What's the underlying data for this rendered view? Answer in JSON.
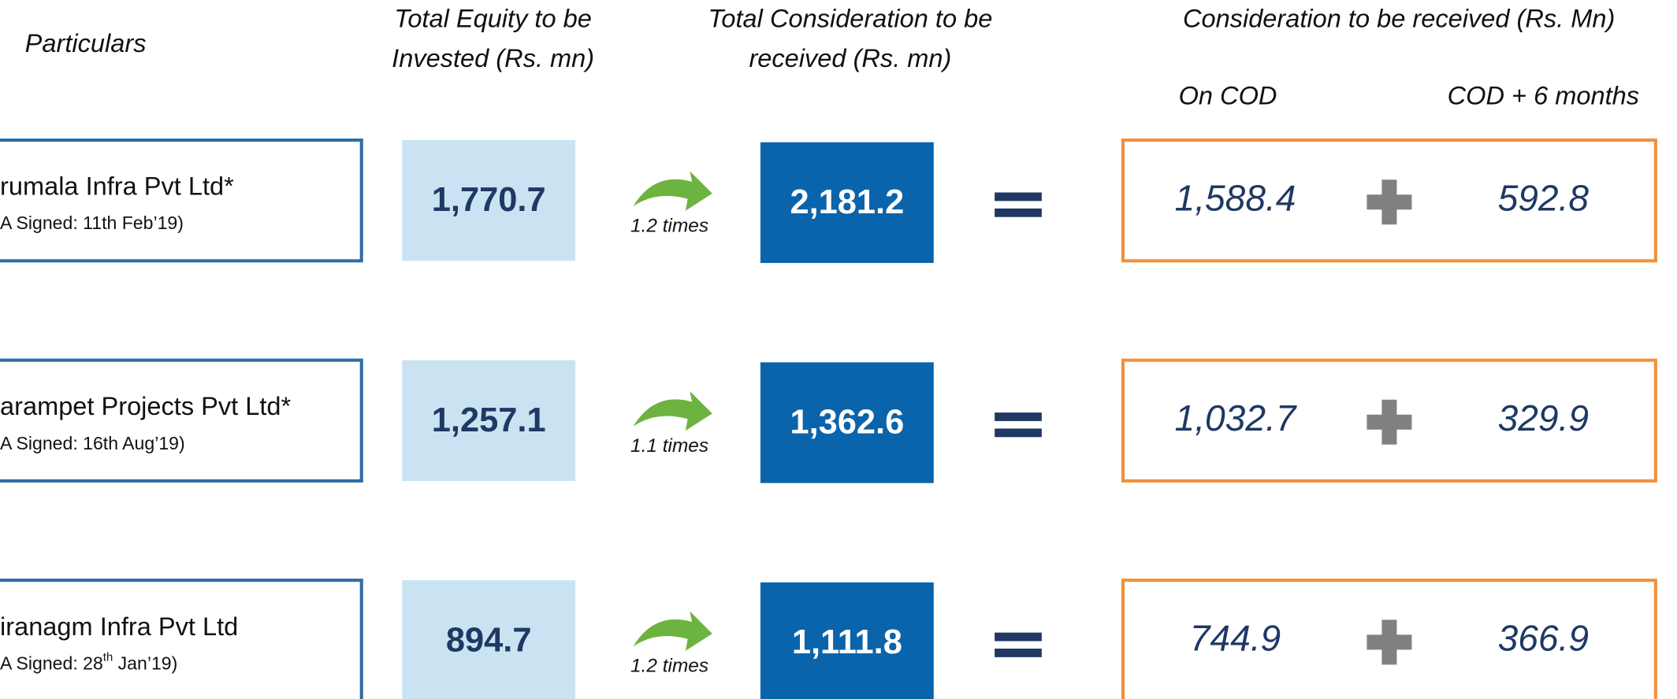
{
  "header": {
    "particulars": "Particulars",
    "equity": [
      "Total Equity to be",
      "Invested (Rs. mn)"
    ],
    "consideration": [
      "Total Consideration to be",
      "received (Rs. mn)"
    ],
    "received": "Consideration to be received (Rs. Mn)",
    "on_cod": "On COD",
    "cod_6": "COD + 6 months"
  },
  "rows": [
    {
      "name": "rumala Infra Pvt Ltd*",
      "signed": [
        "A Signed: 11th Feb’19)"
      ],
      "equity": "1,770.7",
      "multiple": "1.2 times",
      "consideration": "2,181.2",
      "on_cod": "1,588.4",
      "cod_6": "592.8"
    },
    {
      "name": "arampet Projects Pvt Ltd*",
      "signed": [
        "A Signed: 16th Aug’19)"
      ],
      "equity": "1,257.1",
      "multiple": "1.1 times",
      "consideration": "1,362.6",
      "on_cod": "1,032.7",
      "cod_6": "329.9"
    },
    {
      "name": "iranagm Infra Pvt Ltd",
      "signed": [
        "A Signed: 28",
        "th",
        " Jan’19)"
      ],
      "equity": "894.7",
      "multiple": "1.2 times",
      "consideration": "1,111.8",
      "on_cod": "744.9",
      "cod_6": "366.9"
    }
  ]
}
